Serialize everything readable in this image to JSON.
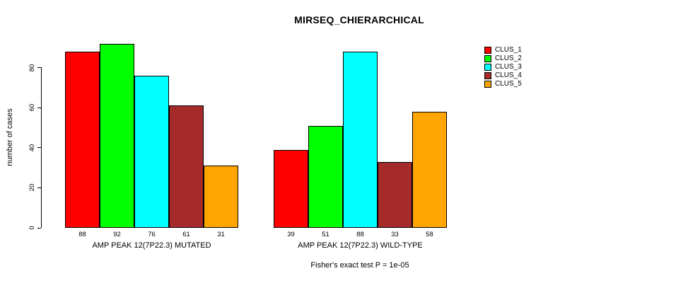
{
  "chart_data": {
    "type": "bar",
    "title": "MIRSEQ_CHIERARCHICAL",
    "ylabel": "number of cases",
    "xlabel": "",
    "ylim": [
      0,
      80
    ],
    "yticks": [
      0,
      20,
      40,
      60,
      80
    ],
    "grid": false,
    "legend_position": "right",
    "bar_value_labels": true,
    "categories": [
      "AMP PEAK 12(7P22.3) MUTATED",
      "AMP PEAK 12(7P22.3) WILD-TYPE"
    ],
    "series": [
      {
        "name": "CLUS_1",
        "color": "#FF0000",
        "values": [
          88,
          39
        ]
      },
      {
        "name": "CLUS_2",
        "color": "#00FF00",
        "values": [
          92,
          51
        ]
      },
      {
        "name": "CLUS_3",
        "color": "#00FFFF",
        "values": [
          76,
          88
        ]
      },
      {
        "name": "CLUS_4",
        "color": "#A52A2A",
        "values": [
          61,
          33
        ]
      },
      {
        "name": "CLUS_5",
        "color": "#FFA500",
        "values": [
          31,
          58
        ]
      }
    ],
    "footer": "Fisher's exact test P = 1e-05"
  }
}
